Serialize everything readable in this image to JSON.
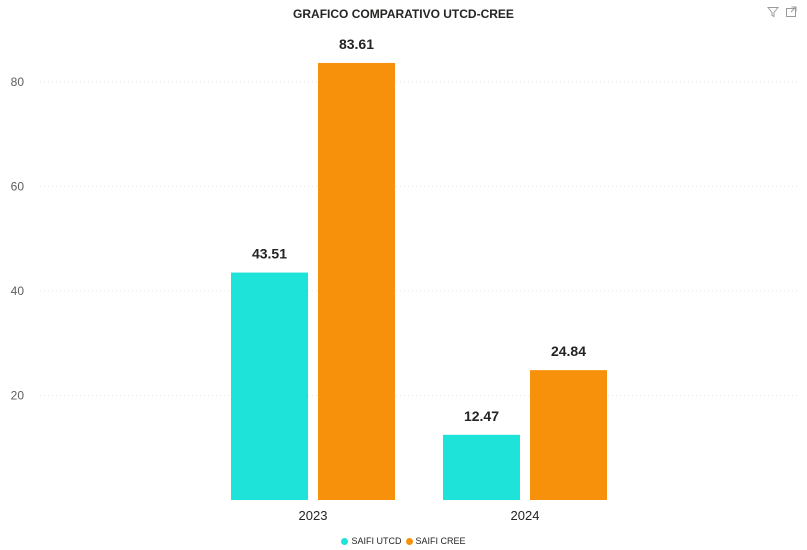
{
  "chart_data": {
    "type": "bar",
    "title": "GRAFICO COMPARATIVO UTCD-CREE",
    "xlabel": "",
    "ylabel": "",
    "categories": [
      "2023",
      "2024"
    ],
    "series": [
      {
        "name": "SAIFI UTCD",
        "values": [
          43.51,
          12.47
        ],
        "color": "#1de3d8"
      },
      {
        "name": "SAIFI CREE",
        "values": [
          83.61,
          24.84
        ],
        "color": "#f7900a"
      }
    ],
    "ylim": [
      0,
      88
    ],
    "yticks": [
      20,
      40,
      60,
      80
    ],
    "grid": true,
    "legend_position": "bottom-center"
  },
  "toolbar": {
    "icons": [
      "filter-icon",
      "focus-mode-icon"
    ]
  }
}
